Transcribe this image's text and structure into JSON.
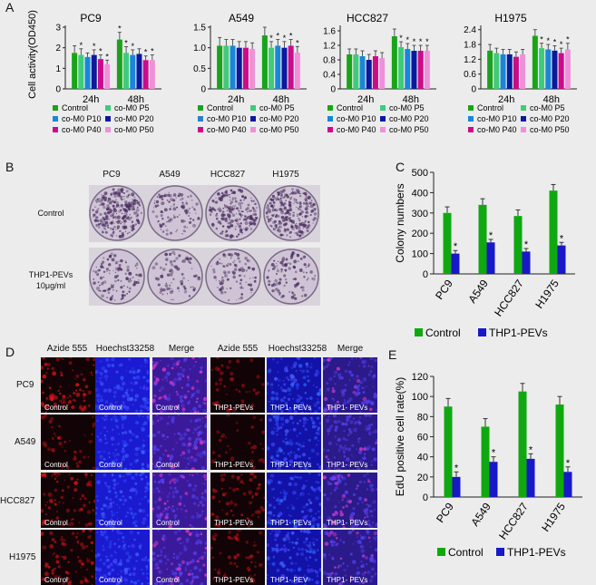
{
  "panel_labels": {
    "a": "A",
    "b": "B",
    "c": "C",
    "d": "D",
    "e": "E"
  },
  "colors": {
    "control": "#1aa31a",
    "p5": "#3ecc7a",
    "p10": "#1a86d8",
    "p20": "#0a1a9c",
    "p40": "#cc0a8a",
    "p50": "#f090d8",
    "green": "#10a810",
    "blue": "#1818c8",
    "plate_dark": "#4a2e5e",
    "plate_light": "#cfc4d6"
  },
  "chart_data": [
    {
      "id": "pc9",
      "type": "bar",
      "title": "PC9",
      "ylabel": "Cell activity(OD450)",
      "ylim": [
        0,
        3.0
      ],
      "ytick_labels": [
        "0",
        "1",
        "2",
        "3"
      ],
      "categories": [
        "24h",
        "48h"
      ],
      "series": [
        {
          "name": "Control",
          "values": [
            1.75,
            2.4
          ],
          "errors": [
            0.35,
            0.35
          ]
        },
        {
          "name": "co-M0 P5",
          "values": [
            1.65,
            1.75
          ],
          "errors": [
            0.3,
            0.3
          ]
        },
        {
          "name": "co-M0 P10",
          "values": [
            1.55,
            1.65
          ],
          "errors": [
            0.2,
            0.25
          ]
        },
        {
          "name": "co-M0 P20",
          "values": [
            1.65,
            1.7
          ],
          "errors": [
            0.25,
            0.25
          ]
        },
        {
          "name": "co-M0 P40",
          "values": [
            1.45,
            1.4
          ],
          "errors": [
            0.2,
            0.2
          ]
        },
        {
          "name": "co-M0 P50",
          "values": [
            1.2,
            1.4
          ],
          "errors": [
            0.2,
            0.25
          ]
        }
      ],
      "sig_marks": [
        [
          "",
          "*"
        ],
        [
          "*",
          "*"
        ],
        [
          "",
          "*"
        ],
        [
          "*",
          ""
        ],
        [
          "*",
          "*"
        ],
        [
          "*",
          "*"
        ]
      ],
      "legend": [
        "Control",
        "co-M0 P5",
        "co-M0 P10",
        "co-M0 P20",
        "co-M0 P40",
        "co-M0 P50"
      ]
    },
    {
      "id": "a549",
      "type": "bar",
      "title": "A549",
      "ylim": [
        0,
        1.5
      ],
      "ytick_labels": [
        "0",
        "0.5",
        "1.0",
        "1.5"
      ],
      "categories": [
        "24h",
        "48h"
      ],
      "series": [
        {
          "name": "Control",
          "values": [
            1.05,
            1.3
          ],
          "errors": [
            0.2,
            0.2
          ]
        },
        {
          "name": "co-M0 P5",
          "values": [
            1.05,
            1.0
          ],
          "errors": [
            0.15,
            0.15
          ]
        },
        {
          "name": "co-M0 P10",
          "values": [
            1.05,
            1.05
          ],
          "errors": [
            0.15,
            0.15
          ]
        },
        {
          "name": "co-M0 P20",
          "values": [
            1.0,
            1.0
          ],
          "errors": [
            0.15,
            0.15
          ]
        },
        {
          "name": "co-M0 P40",
          "values": [
            1.0,
            1.05
          ],
          "errors": [
            0.15,
            0.15
          ]
        },
        {
          "name": "co-M0 P50",
          "values": [
            0.97,
            0.88
          ],
          "errors": [
            0.15,
            0.15
          ]
        }
      ],
      "sig_marks": [
        [
          "",
          ""
        ],
        [
          "",
          "*"
        ],
        [
          "",
          "*"
        ],
        [
          "",
          "*"
        ],
        [
          "",
          "*"
        ],
        [
          "",
          "*"
        ]
      ],
      "legend": [
        "Control",
        "co-M0 P5",
        "co-M0 P10",
        "co-M0 P20",
        "co-M0 P40",
        "co-M0 P50"
      ]
    },
    {
      "id": "hcc827",
      "type": "bar",
      "title": "HCC827",
      "ylim": [
        0,
        1.7
      ],
      "ytick_labels": [
        "0",
        "0.4",
        "0.8",
        "1.2",
        "1.6"
      ],
      "categories": [
        "24h",
        "48h"
      ],
      "series": [
        {
          "name": "Control",
          "values": [
            0.95,
            1.45
          ],
          "errors": [
            0.15,
            0.2
          ]
        },
        {
          "name": "co-M0 P5",
          "values": [
            0.95,
            1.15
          ],
          "errors": [
            0.15,
            0.15
          ]
        },
        {
          "name": "co-M0 P10",
          "values": [
            0.9,
            1.1
          ],
          "errors": [
            0.15,
            0.15
          ]
        },
        {
          "name": "co-M0 P20",
          "values": [
            0.8,
            1.05
          ],
          "errors": [
            0.15,
            0.15
          ]
        },
        {
          "name": "co-M0 P40",
          "values": [
            0.9,
            1.05
          ],
          "errors": [
            0.15,
            0.15
          ]
        },
        {
          "name": "co-M0 P50",
          "values": [
            0.85,
            1.05
          ],
          "errors": [
            0.15,
            0.15
          ]
        }
      ],
      "sig_marks": [
        [
          "",
          ""
        ],
        [
          "",
          "*"
        ],
        [
          "",
          "*"
        ],
        [
          "",
          "*"
        ],
        [
          "",
          "*"
        ],
        [
          "",
          "*"
        ]
      ],
      "legend": [
        "Control",
        "co-M0 P5",
        "co-M0 P10",
        "co-M0 P20",
        "co-M0 P40",
        "co-M0 P50"
      ]
    },
    {
      "id": "h1975",
      "type": "bar",
      "title": "H1975",
      "ylim": [
        0,
        2.5
      ],
      "ytick_labels": [
        "0",
        "0.6",
        "1.2",
        "1.8",
        "2.4"
      ],
      "categories": [
        "24h",
        "48h"
      ],
      "series": [
        {
          "name": "Control",
          "values": [
            1.55,
            2.15
          ],
          "errors": [
            0.25,
            0.25
          ]
        },
        {
          "name": "co-M0 P5",
          "values": [
            1.45,
            1.65
          ],
          "errors": [
            0.2,
            0.2
          ]
        },
        {
          "name": "co-M0 P10",
          "values": [
            1.4,
            1.6
          ],
          "errors": [
            0.2,
            0.2
          ]
        },
        {
          "name": "co-M0 P20",
          "values": [
            1.4,
            1.55
          ],
          "errors": [
            0.2,
            0.2
          ]
        },
        {
          "name": "co-M0 P40",
          "values": [
            1.3,
            1.45
          ],
          "errors": [
            0.2,
            0.2
          ]
        },
        {
          "name": "co-M0 P50",
          "values": [
            1.4,
            1.6
          ],
          "errors": [
            0.2,
            0.25
          ]
        }
      ],
      "sig_marks": [
        [
          "",
          ""
        ],
        [
          "",
          "*"
        ],
        [
          "",
          "*"
        ],
        [
          "",
          "*"
        ],
        [
          "",
          "*"
        ],
        [
          "",
          "*"
        ]
      ],
      "legend": [
        "Control",
        "co-M0 P5",
        "co-M0 P10",
        "co-M0 P20",
        "co-M0 P40",
        "co-M0 P50"
      ]
    },
    {
      "id": "colony",
      "type": "bar",
      "title": "",
      "ylabel": "Colony numbers",
      "ylim": [
        0,
        500
      ],
      "ytick_labels": [
        "0",
        "100",
        "200",
        "300",
        "400",
        "500"
      ],
      "categories": [
        "PC9",
        "A549",
        "HCC827",
        "H1975"
      ],
      "series": [
        {
          "name": "Control",
          "values": [
            300,
            340,
            285,
            410
          ],
          "errors": [
            30,
            30,
            30,
            30
          ]
        },
        {
          "name": "THP1-PEVs",
          "values": [
            100,
            155,
            110,
            140
          ],
          "errors": [
            15,
            15,
            15,
            15
          ]
        }
      ],
      "sig_marks": [
        [
          "",
          "",
          "",
          ""
        ],
        [
          "*",
          "*",
          "*",
          "*"
        ]
      ],
      "legend": [
        "Control",
        "THP1-PEVs"
      ]
    },
    {
      "id": "edu",
      "type": "bar",
      "title": "",
      "ylabel": "EdU positive cell rate(%)",
      "ylim": [
        0,
        120
      ],
      "ytick_labels": [
        "0",
        "20",
        "40",
        "60",
        "80",
        "100",
        "120"
      ],
      "categories": [
        "PC9",
        "A549",
        "HCC827",
        "H1975"
      ],
      "series": [
        {
          "name": "Control",
          "values": [
            90,
            70,
            105,
            92
          ],
          "errors": [
            8,
            8,
            8,
            8
          ]
        },
        {
          "name": "THP1-PEVs",
          "values": [
            20,
            35,
            38,
            25
          ],
          "errors": [
            5,
            5,
            5,
            5
          ]
        }
      ],
      "sig_marks": [
        [
          "",
          "",
          "",
          ""
        ],
        [
          "*",
          "*",
          "*",
          "*"
        ]
      ],
      "legend": [
        "Control",
        "THP1-PEVs"
      ]
    }
  ],
  "panel_b": {
    "columns": [
      "PC9",
      "A549",
      "HCC827",
      "H1975"
    ],
    "row_control": "Control",
    "row_treat_line1": "THP1-PEVs",
    "row_treat_line2": "10μg/ml",
    "density": [
      [
        0.85,
        0.25,
        0.65,
        0.85
      ],
      [
        0.3,
        0.15,
        0.2,
        0.25
      ]
    ]
  },
  "panel_d": {
    "headers": [
      "Azide 555",
      "Hoechst33258",
      "Merge",
      "Azide 555",
      "Hoechst33258",
      "Merge"
    ],
    "rows": [
      "PC9",
      "A549",
      "HCC827",
      "H1975"
    ],
    "captions": [
      [
        "Control",
        "Control",
        "Control",
        "THP1-PEVs",
        "THP1- PEVs",
        "THP1- PEVs"
      ],
      [
        "Control",
        "Control",
        "Control",
        "THP1-PEVs",
        "THP1- PEVs",
        "THP1- PEVs"
      ],
      [
        "Control",
        "Control",
        "Control",
        "THP1-PEVs",
        "THP1- PEVs",
        "THP1- PEVs"
      ],
      [
        "Control",
        "Control",
        "Control",
        "THP1-PEVs",
        "THP1- PEV",
        "THP1- PEVs"
      ]
    ],
    "channels": [
      "red",
      "blue",
      "merge",
      "red",
      "blue",
      "merge"
    ],
    "red_intensity": [
      [
        0.7,
        0.25
      ],
      [
        0.25,
        0.15
      ],
      [
        0.6,
        0.45
      ],
      [
        0.6,
        0.35
      ]
    ]
  }
}
